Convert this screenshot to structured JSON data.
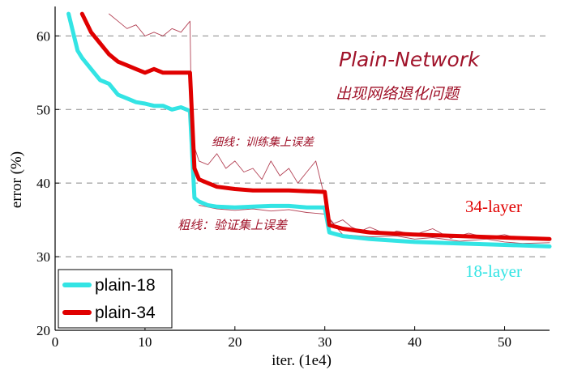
{
  "chart_data": {
    "type": "line",
    "xlabel": "iter. (1e4)",
    "ylabel": "error (%)",
    "xlim": [
      0,
      55
    ],
    "ylim": [
      20,
      64
    ],
    "xticks": [
      0,
      10,
      20,
      30,
      40,
      50
    ],
    "yticks": [
      20,
      30,
      40,
      50,
      60
    ],
    "grid": "horizontal dashed",
    "legend_position": "bottom-left",
    "legend": [
      "plain-18",
      "plain-34"
    ],
    "colors": {
      "plain18": "#33e4e4",
      "plain34": "#e00000",
      "annot": "#a0132a",
      "grid": "#888888"
    },
    "annotations": {
      "layer34": "34-layer",
      "layer18": "18-layer",
      "note_title": "Plain-Network",
      "note_subtitle": "出现网络退化问题",
      "thin_note": "细线：训练集上误差",
      "thick_note": "粗线：验证集上误差"
    },
    "series": [
      {
        "name": "plain-18",
        "style": "thick",
        "x": [
          1.5,
          2.5,
          3,
          4,
          5,
          6,
          7,
          8,
          9,
          10,
          11,
          12,
          13,
          14,
          15,
          15.5,
          16,
          17,
          18,
          20,
          22,
          24,
          26,
          28,
          30,
          30.5,
          32,
          35,
          40,
          45,
          50,
          55
        ],
        "y": [
          63,
          58,
          57,
          55.5,
          54,
          53.5,
          52,
          51.5,
          51,
          50.8,
          50.5,
          50.5,
          50,
          50.3,
          49.8,
          38,
          37.5,
          37,
          36.8,
          36.7,
          36.8,
          36.9,
          36.9,
          36.7,
          36.7,
          33.3,
          32.8,
          32.4,
          32,
          31.8,
          31.6,
          31.4
        ]
      },
      {
        "name": "plain-34",
        "style": "thick",
        "x": [
          3,
          4,
          5,
          6,
          7,
          8,
          9,
          10,
          11,
          12,
          13,
          14,
          15,
          15.5,
          16,
          17,
          18,
          20,
          22,
          24,
          26,
          28,
          30,
          30.5,
          32,
          35,
          40,
          45,
          50,
          55
        ],
        "y": [
          63,
          60.5,
          59,
          57.5,
          56.5,
          56,
          55.5,
          55,
          55.5,
          55,
          55,
          55,
          55,
          42,
          40.5,
          40,
          39.5,
          39.2,
          39,
          39,
          39,
          38.9,
          38.8,
          34.3,
          33.8,
          33.3,
          33,
          32.8,
          32.6,
          32.4
        ]
      },
      {
        "name": "plain-34 training",
        "style": "thin",
        "x": [
          6,
          7,
          8,
          9,
          10,
          11,
          12,
          13,
          14,
          15,
          15.2,
          16,
          17,
          18,
          19,
          20,
          21,
          22,
          23,
          24,
          25,
          26,
          27,
          28,
          29,
          30,
          30.3,
          31,
          32,
          33,
          34,
          35,
          36,
          37,
          38,
          40,
          42,
          44,
          46,
          48,
          50,
          52,
          55
        ],
        "y": [
          63,
          62,
          61,
          61.5,
          60,
          60.5,
          60,
          61,
          60.5,
          62,
          46,
          43,
          42.5,
          44,
          42,
          43,
          41.5,
          42,
          40.5,
          43,
          41,
          42,
          40,
          41.5,
          43,
          38,
          35.5,
          34.5,
          35,
          34,
          33.5,
          34,
          33.5,
          33,
          33.5,
          33,
          33.8,
          32.5,
          33.2,
          32.6,
          33,
          32.3,
          32.5
        ]
      },
      {
        "name": "plain-18 training",
        "style": "thin",
        "x": [
          16,
          18,
          20,
          22,
          24,
          26,
          28,
          30,
          32,
          35,
          38,
          40,
          42,
          45,
          48,
          50,
          52,
          55
        ],
        "y": [
          37,
          36.5,
          36.3,
          36.5,
          36.2,
          36.4,
          36,
          35.8,
          33,
          32.7,
          32.8,
          32.4,
          32.6,
          32.1,
          32.4,
          32,
          31.8,
          31.9
        ]
      }
    ]
  }
}
